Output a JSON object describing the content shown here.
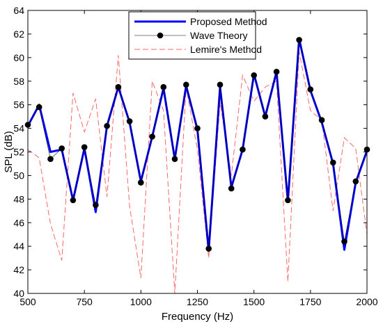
{
  "chart_data": {
    "type": "line",
    "title": "",
    "xlabel": "Frequency (Hz)",
    "ylabel": "SPL (dB)",
    "xlim": [
      500,
      2000
    ],
    "ylim": [
      40,
      64
    ],
    "grid": false,
    "legend_position": "top-center",
    "x_ticks": [
      500,
      750,
      1000,
      1250,
      1500,
      1750,
      2000
    ],
    "y_ticks": [
      40,
      42,
      44,
      46,
      48,
      50,
      52,
      54,
      56,
      58,
      60,
      62,
      64
    ],
    "series": [
      {
        "name": "Proposed Method",
        "style": "solid-thick",
        "color": "#0000ff",
        "x": [
          500,
          550,
          600,
          650,
          700,
          750,
          800,
          850,
          900,
          950,
          1000,
          1050,
          1100,
          1150,
          1200,
          1250,
          1300,
          1350,
          1400,
          1450,
          1500,
          1550,
          1600,
          1650,
          1700,
          1750,
          1800,
          1850,
          1900,
          1950,
          2000
        ],
        "y": [
          54.2,
          56.0,
          52.0,
          52.2,
          47.9,
          52.3,
          46.9,
          54.2,
          57.5,
          54.5,
          49.5,
          53.3,
          57.4,
          51.4,
          57.6,
          53.9,
          43.6,
          57.5,
          49.0,
          52.2,
          58.6,
          55.0,
          58.8,
          47.8,
          61.6,
          57.2,
          54.5,
          51.0,
          43.7,
          49.4,
          52.1
        ]
      },
      {
        "name": "Wave Theory",
        "style": "solid-thin-markers",
        "color": "#000000",
        "x": [
          500,
          550,
          600,
          650,
          700,
          750,
          800,
          850,
          900,
          950,
          1000,
          1050,
          1100,
          1150,
          1200,
          1250,
          1300,
          1350,
          1400,
          1450,
          1500,
          1550,
          1600,
          1650,
          1700,
          1750,
          1800,
          1850,
          1900,
          1950,
          2000
        ],
        "y": [
          54.3,
          55.8,
          51.4,
          52.3,
          47.9,
          52.4,
          47.5,
          54.2,
          57.5,
          54.6,
          49.4,
          53.3,
          57.5,
          51.4,
          57.7,
          54.0,
          43.8,
          57.7,
          48.9,
          52.2,
          58.5,
          55.0,
          58.8,
          47.9,
          61.5,
          57.3,
          54.7,
          51.1,
          44.4,
          49.5,
          52.2
        ]
      },
      {
        "name": "Lemire's Method",
        "style": "dashed",
        "color": "#ff6666",
        "x": [
          500,
          550,
          600,
          650,
          700,
          750,
          800,
          850,
          900,
          950,
          1000,
          1050,
          1100,
          1150,
          1200,
          1250,
          1300,
          1350,
          1400,
          1450,
          1500,
          1550,
          1600,
          1650,
          1700,
          1750,
          1800,
          1850,
          1900,
          1950,
          2000
        ],
        "y": [
          52.2,
          51.5,
          45.9,
          42.8,
          57.0,
          53.7,
          56.5,
          48.2,
          60.2,
          47.4,
          41.3,
          58.0,
          55.5,
          40.0,
          57.5,
          52.2,
          43.0,
          56.2,
          50.0,
          58.5,
          56.3,
          57.5,
          58.0,
          41.0,
          60.5,
          55.5,
          54.7,
          47.0,
          53.2,
          52.3,
          45.0
        ]
      }
    ]
  }
}
